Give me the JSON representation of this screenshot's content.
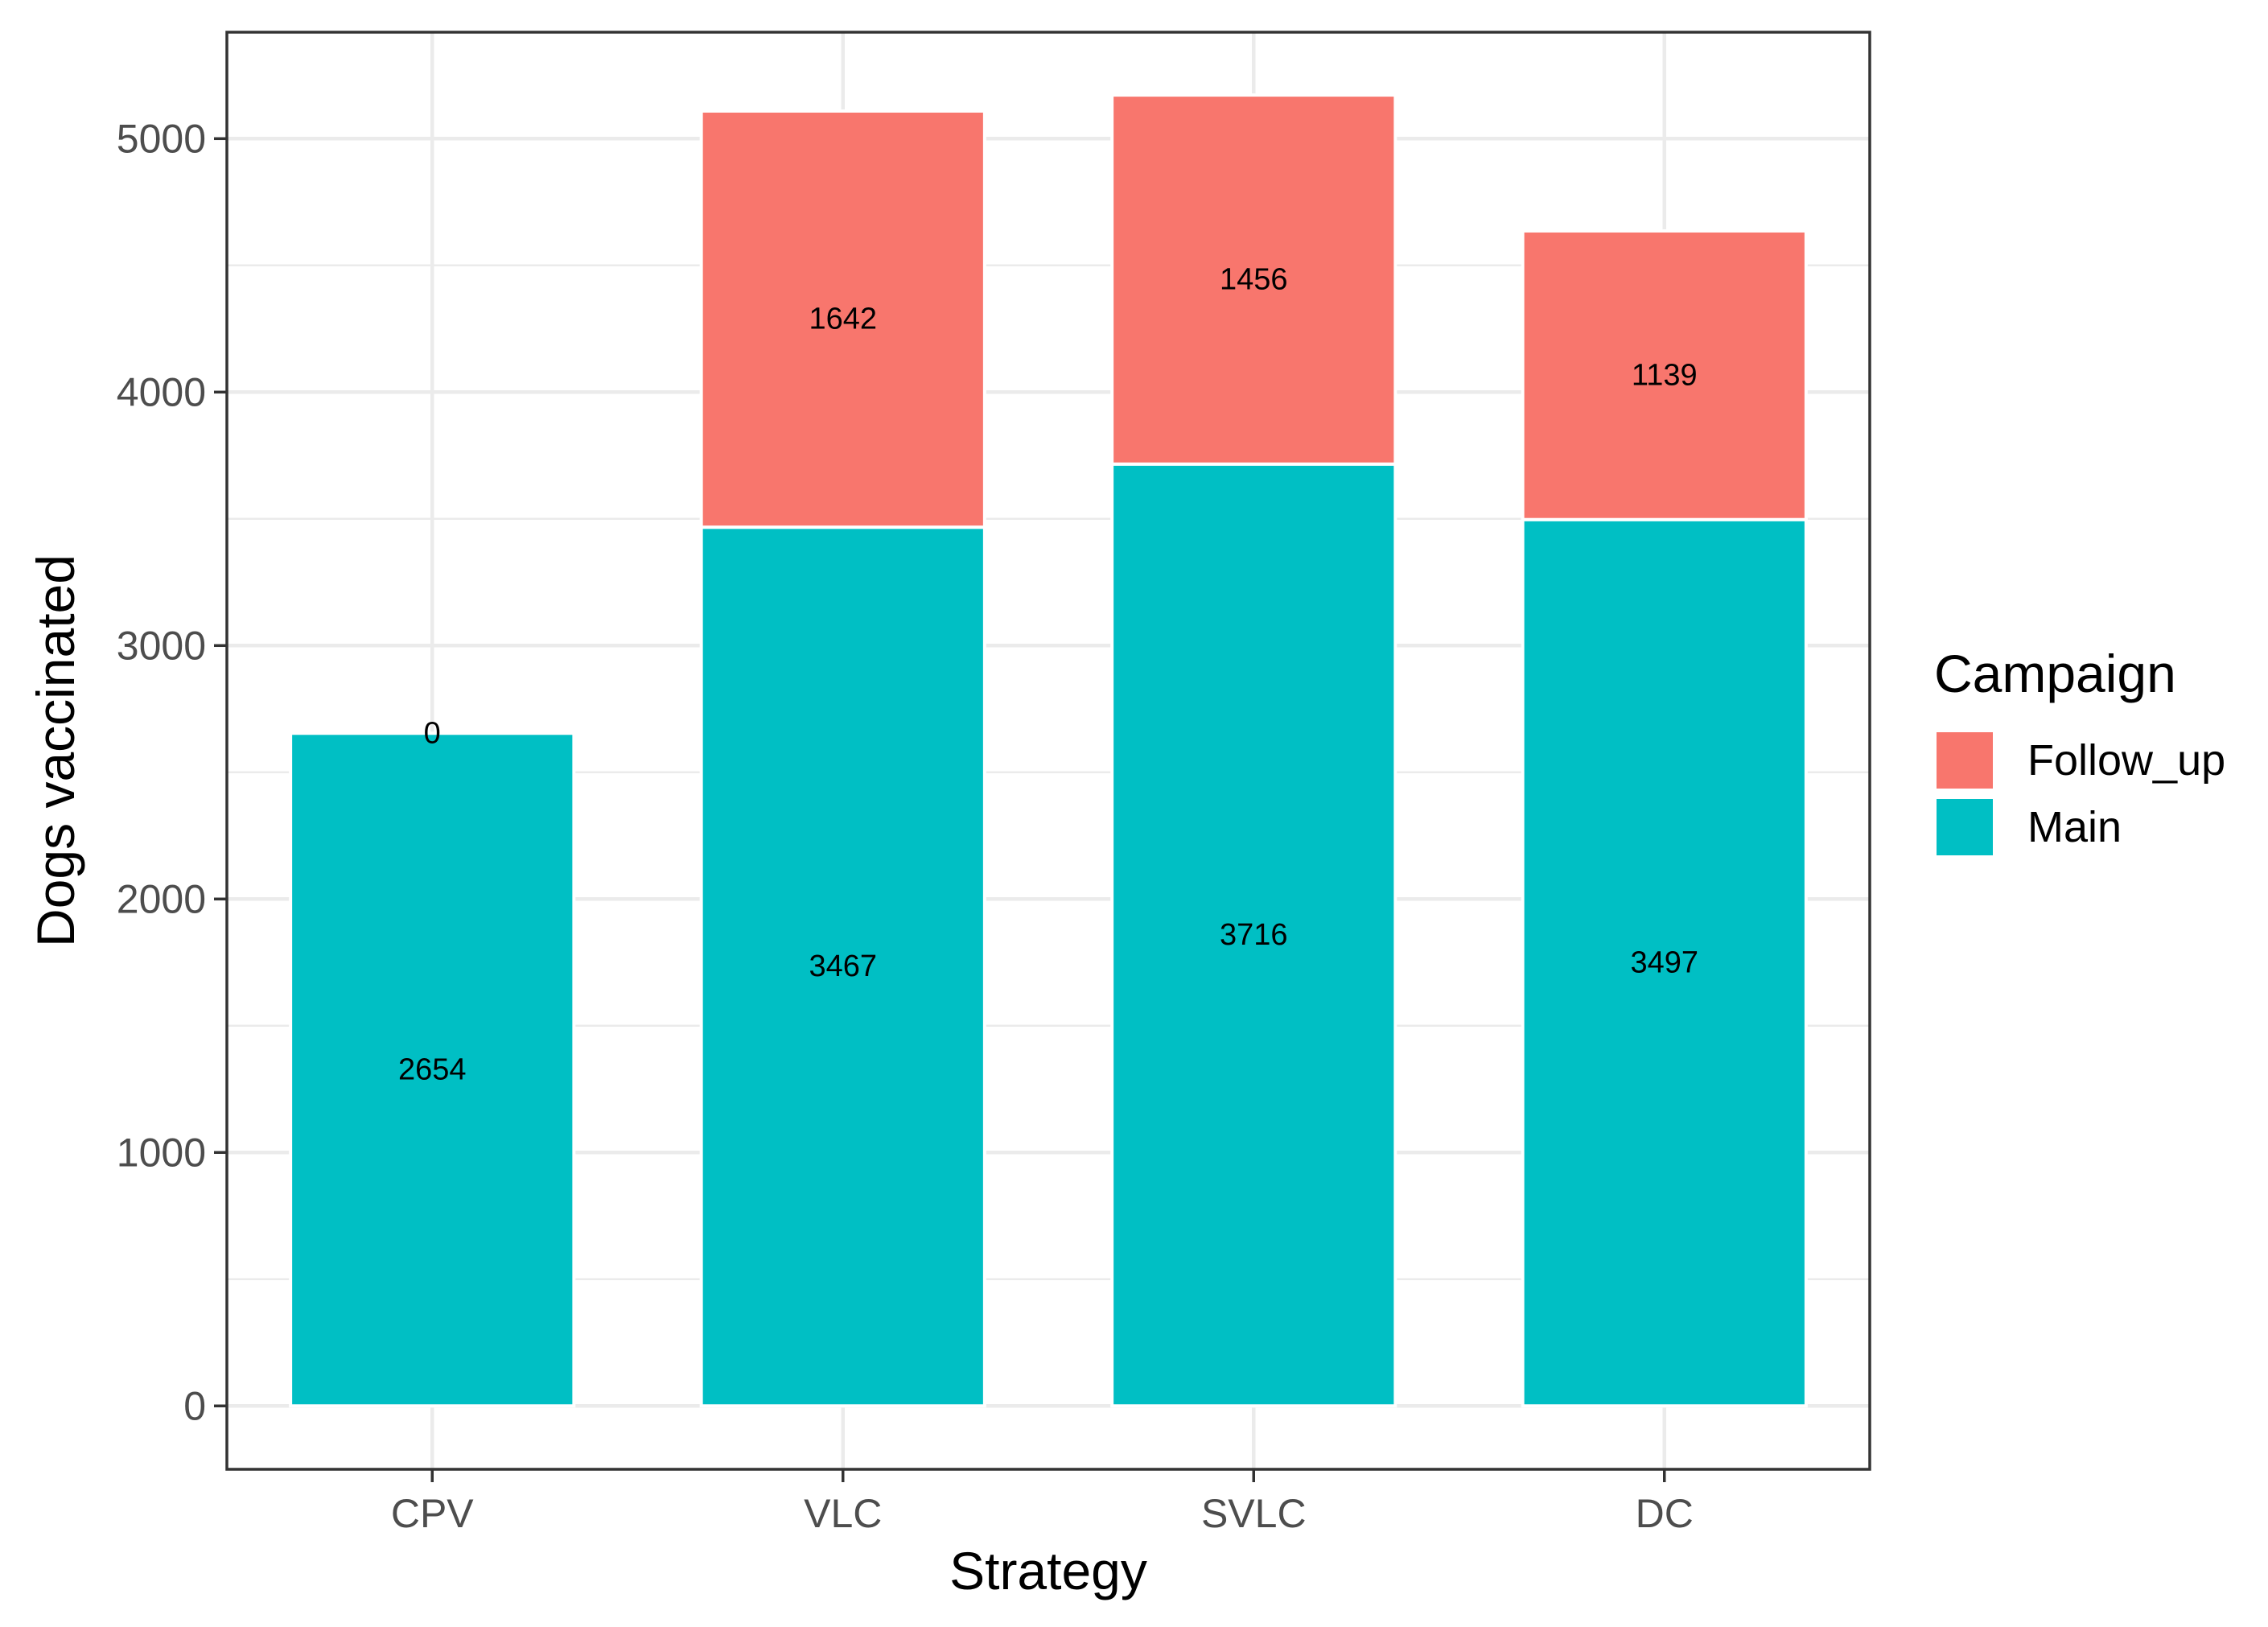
{
  "chart_data": {
    "type": "bar",
    "stacked": true,
    "categories": [
      "CPV",
      "VLC",
      "SVLC",
      "DC"
    ],
    "series": [
      {
        "name": "Main",
        "color": "#00BFC4",
        "values": [
          2654,
          3467,
          3716,
          3497
        ]
      },
      {
        "name": "Follow_up",
        "color": "#F8766D",
        "values": [
          0,
          1642,
          1456,
          1139
        ]
      }
    ],
    "title": "",
    "xlabel": "Strategy",
    "ylabel": "Dogs vaccinated",
    "ylim": [
      -250,
      5420
    ],
    "yticks": [
      0,
      1000,
      2000,
      3000,
      4000,
      5000
    ],
    "ytick_labels": [
      "0",
      "1000",
      "2000",
      "3000",
      "4000",
      "5000"
    ],
    "grid": true,
    "legend": {
      "title": "Campaign",
      "position": "right",
      "entries": [
        {
          "label": "Follow_up",
          "color": "#F8766D"
        },
        {
          "label": "Main",
          "color": "#00BFC4"
        }
      ]
    }
  }
}
